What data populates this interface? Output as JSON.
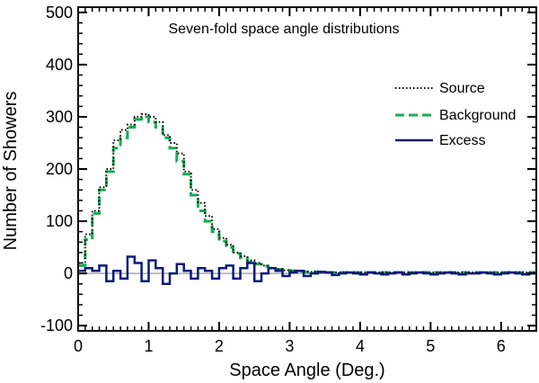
{
  "chart_data": {
    "type": "line",
    "title": "Seven-fold space angle distributions",
    "xlabel": "Space Angle (Deg.)",
    "ylabel": "Number of Showers",
    "xlim": [
      0,
      6.5
    ],
    "ylim": [
      -110,
      510
    ],
    "x_ticks": [
      0,
      1,
      2,
      3,
      4,
      5,
      6
    ],
    "x_tick_labels": [
      "0",
      "1",
      "2",
      "3",
      "4",
      "5",
      "6"
    ],
    "y_ticks": [
      -100,
      0,
      100,
      200,
      300,
      400,
      500
    ],
    "y_tick_labels": [
      "-100",
      "0",
      "100",
      "200",
      "300",
      "400",
      "500"
    ],
    "bin_width": 0.1,
    "legend_position": "right",
    "zero_line_color": "#aaaaaa",
    "series": [
      {
        "name": "Source",
        "style": "dotted",
        "color": "#000000",
        "values": [
          20,
          75,
          120,
          165,
          200,
          255,
          275,
          285,
          300,
          305,
          300,
          290,
          265,
          250,
          230,
          195,
          160,
          135,
          110,
          85,
          68,
          55,
          40,
          33,
          25,
          20,
          15,
          10,
          8,
          6,
          5,
          4,
          3,
          3,
          2,
          2,
          2,
          2,
          2,
          2,
          2,
          2,
          2,
          2,
          2,
          2,
          2,
          2,
          2,
          2,
          2,
          2,
          2,
          2,
          2,
          2,
          2,
          2,
          2,
          2,
          2,
          2,
          2,
          2,
          2
        ]
      },
      {
        "name": "Background",
        "style": "dashed",
        "color": "#1aaa55",
        "values": [
          15,
          65,
          115,
          160,
          195,
          240,
          260,
          280,
          295,
          300,
          290,
          280,
          260,
          240,
          215,
          190,
          150,
          120,
          100,
          80,
          62,
          50,
          38,
          30,
          22,
          18,
          14,
          10,
          8,
          6,
          5,
          4,
          3,
          3,
          2,
          2,
          2,
          2,
          2,
          2,
          2,
          2,
          2,
          2,
          2,
          2,
          2,
          2,
          2,
          2,
          2,
          2,
          2,
          2,
          2,
          2,
          2,
          2,
          2,
          2,
          2,
          2,
          2,
          2,
          2
        ]
      },
      {
        "name": "Excess",
        "style": "solid",
        "color": "#0a1a7a",
        "values": [
          5,
          10,
          5,
          15,
          -15,
          5,
          -10,
          32,
          20,
          -15,
          25,
          10,
          -20,
          0,
          18,
          5,
          -10,
          10,
          5,
          -10,
          10,
          15,
          -10,
          10,
          20,
          -15,
          0,
          10,
          5,
          -5,
          2,
          5,
          -5,
          0,
          3,
          2,
          -3,
          0,
          2,
          0,
          -2,
          2,
          0,
          -2,
          0,
          2,
          -2,
          0,
          2,
          0,
          -2,
          0,
          2,
          0,
          -2,
          0,
          0,
          2,
          0,
          -2,
          0,
          2,
          0,
          -2,
          0
        ]
      }
    ]
  }
}
